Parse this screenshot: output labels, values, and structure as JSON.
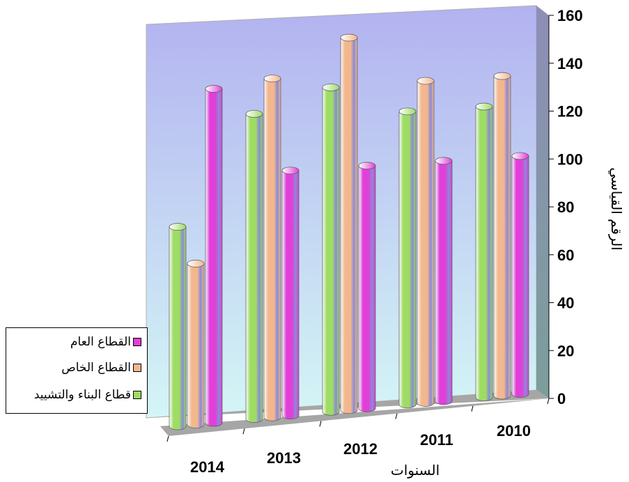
{
  "chart_data": {
    "type": "bar",
    "style": "3d-cylinder",
    "categories": [
      "2014",
      "2013",
      "2012",
      "2011",
      "2010"
    ],
    "series": [
      {
        "name": "قطاع البناء والتشييد",
        "values": [
          83,
          127,
          135,
          122,
          121
        ],
        "color": "#9edc64"
      },
      {
        "name": "القطاع الخاص",
        "values": [
          67,
          141,
          155,
          134,
          133
        ],
        "color": "#f3b78e"
      },
      {
        "name": "القطاع العام",
        "values": [
          139,
          102,
          101,
          100,
          99
        ],
        "color": "#e040d8"
      }
    ],
    "ylim": [
      0,
      160
    ],
    "yticks": [
      0,
      20,
      40,
      60,
      80,
      100,
      120,
      140,
      160
    ],
    "ylabel": "الرقم القياسي",
    "xlabel": "السنوات",
    "grid": false,
    "legend_position": "left",
    "y_axis_side": "right",
    "back_wall_color": "#b6b8f0"
  }
}
